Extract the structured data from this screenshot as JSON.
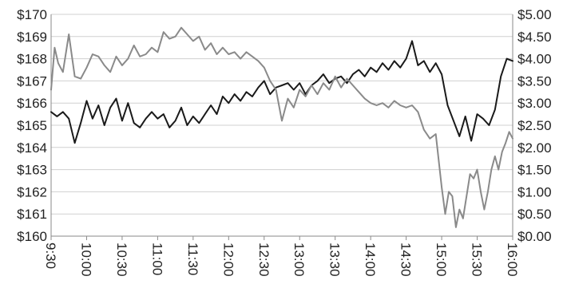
{
  "chart_data": {
    "type": "line",
    "grid": "horizontal",
    "legend": "none",
    "x_axis": {
      "ticks": [
        "9:30",
        "10:00",
        "10:30",
        "11:00",
        "11:30",
        "12:00",
        "12:30",
        "13:00",
        "13:30",
        "14:00",
        "14:30",
        "15:00",
        "15:30",
        "16:00"
      ]
    },
    "y_left": {
      "range": [
        160,
        170
      ],
      "step": 1,
      "tick_labels": [
        "$160",
        "$161",
        "$162",
        "$163",
        "$164",
        "$165",
        "$166",
        "$167",
        "$168",
        "$169",
        "$170"
      ]
    },
    "y_right": {
      "range": [
        0,
        5
      ],
      "step": 0.5,
      "tick_labels": [
        "$0.00",
        "$0.50",
        "$1.00",
        "$1.50",
        "$2.00",
        "$2.50",
        "$3.00",
        "$3.50",
        "$4.00",
        "$4.50",
        "$5.00"
      ]
    },
    "series": [
      {
        "axis": "left",
        "color": "#1a1a1a",
        "points": [
          [
            "9:30",
            165.6
          ],
          [
            "9:35",
            165.4
          ],
          [
            "9:40",
            165.6
          ],
          [
            "9:45",
            165.3
          ],
          [
            "9:50",
            164.2
          ],
          [
            "9:55",
            165.1
          ],
          [
            "10:00",
            166.1
          ],
          [
            "10:05",
            165.3
          ],
          [
            "10:10",
            165.9
          ],
          [
            "10:15",
            165.0
          ],
          [
            "10:20",
            165.8
          ],
          [
            "10:25",
            166.2
          ],
          [
            "10:30",
            165.2
          ],
          [
            "10:35",
            166.0
          ],
          [
            "10:40",
            165.1
          ],
          [
            "10:45",
            164.9
          ],
          [
            "10:50",
            165.3
          ],
          [
            "10:55",
            165.6
          ],
          [
            "11:00",
            165.3
          ],
          [
            "11:05",
            165.5
          ],
          [
            "11:10",
            164.9
          ],
          [
            "11:15",
            165.2
          ],
          [
            "11:20",
            165.8
          ],
          [
            "11:25",
            165.0
          ],
          [
            "11:30",
            165.4
          ],
          [
            "11:35",
            165.1
          ],
          [
            "11:40",
            165.5
          ],
          [
            "11:45",
            165.9
          ],
          [
            "11:50",
            165.5
          ],
          [
            "11:55",
            166.3
          ],
          [
            "12:00",
            166.0
          ],
          [
            "12:05",
            166.4
          ],
          [
            "12:10",
            166.1
          ],
          [
            "12:15",
            166.5
          ],
          [
            "12:20",
            166.3
          ],
          [
            "12:25",
            166.7
          ],
          [
            "12:30",
            167.0
          ],
          [
            "12:35",
            166.4
          ],
          [
            "12:40",
            166.7
          ],
          [
            "12:45",
            166.8
          ],
          [
            "12:50",
            166.9
          ],
          [
            "12:55",
            166.6
          ],
          [
            "13:00",
            166.9
          ],
          [
            "13:05",
            166.4
          ],
          [
            "13:10",
            166.8
          ],
          [
            "13:15",
            167.0
          ],
          [
            "13:20",
            167.3
          ],
          [
            "13:25",
            166.9
          ],
          [
            "13:30",
            167.1
          ],
          [
            "13:35",
            167.2
          ],
          [
            "13:40",
            166.9
          ],
          [
            "13:45",
            167.3
          ],
          [
            "13:50",
            167.5
          ],
          [
            "13:55",
            167.2
          ],
          [
            "14:00",
            167.6
          ],
          [
            "14:05",
            167.4
          ],
          [
            "14:10",
            167.8
          ],
          [
            "14:15",
            167.5
          ],
          [
            "14:20",
            167.9
          ],
          [
            "14:25",
            167.6
          ],
          [
            "14:30",
            168.0
          ],
          [
            "14:35",
            168.8
          ],
          [
            "14:40",
            167.7
          ],
          [
            "14:45",
            167.9
          ],
          [
            "14:50",
            167.4
          ],
          [
            "14:55",
            167.8
          ],
          [
            "15:00",
            167.3
          ],
          [
            "15:05",
            165.9
          ],
          [
            "15:10",
            165.2
          ],
          [
            "15:15",
            164.5
          ],
          [
            "15:20",
            165.4
          ],
          [
            "15:25",
            164.3
          ],
          [
            "15:30",
            165.5
          ],
          [
            "15:35",
            165.3
          ],
          [
            "15:40",
            165.0
          ],
          [
            "15:45",
            165.7
          ],
          [
            "15:50",
            167.2
          ],
          [
            "15:55",
            168.0
          ],
          [
            "16:00",
            167.9
          ]
        ]
      },
      {
        "axis": "right",
        "color": "#8a8a8a",
        "points": [
          [
            "9:30",
            3.3
          ],
          [
            "9:33",
            4.25
          ],
          [
            "9:36",
            3.9
          ],
          [
            "9:40",
            3.7
          ],
          [
            "9:45",
            4.55
          ],
          [
            "9:50",
            3.6
          ],
          [
            "9:55",
            3.55
          ],
          [
            "10:00",
            3.8
          ],
          [
            "10:05",
            4.1
          ],
          [
            "10:10",
            4.05
          ],
          [
            "10:15",
            3.85
          ],
          [
            "10:20",
            3.7
          ],
          [
            "10:25",
            4.05
          ],
          [
            "10:30",
            3.85
          ],
          [
            "10:35",
            4.0
          ],
          [
            "10:40",
            4.3
          ],
          [
            "10:45",
            4.05
          ],
          [
            "10:50",
            4.1
          ],
          [
            "10:55",
            4.25
          ],
          [
            "11:00",
            4.15
          ],
          [
            "11:05",
            4.6
          ],
          [
            "11:10",
            4.45
          ],
          [
            "11:15",
            4.5
          ],
          [
            "11:20",
            4.7
          ],
          [
            "11:25",
            4.55
          ],
          [
            "11:30",
            4.4
          ],
          [
            "11:35",
            4.5
          ],
          [
            "11:40",
            4.2
          ],
          [
            "11:45",
            4.35
          ],
          [
            "11:50",
            4.1
          ],
          [
            "11:55",
            4.25
          ],
          [
            "12:00",
            4.1
          ],
          [
            "12:05",
            4.15
          ],
          [
            "12:10",
            4.0
          ],
          [
            "12:15",
            4.15
          ],
          [
            "12:20",
            4.05
          ],
          [
            "12:25",
            3.95
          ],
          [
            "12:30",
            3.8
          ],
          [
            "12:35",
            3.5
          ],
          [
            "12:40",
            3.3
          ],
          [
            "12:45",
            2.6
          ],
          [
            "12:50",
            3.1
          ],
          [
            "12:55",
            2.9
          ],
          [
            "13:00",
            3.3
          ],
          [
            "13:05",
            3.15
          ],
          [
            "13:10",
            3.4
          ],
          [
            "13:15",
            3.2
          ],
          [
            "13:20",
            3.45
          ],
          [
            "13:25",
            3.3
          ],
          [
            "13:30",
            3.6
          ],
          [
            "13:35",
            3.35
          ],
          [
            "13:40",
            3.55
          ],
          [
            "13:45",
            3.4
          ],
          [
            "13:50",
            3.25
          ],
          [
            "13:55",
            3.1
          ],
          [
            "14:00",
            3.0
          ],
          [
            "14:05",
            2.95
          ],
          [
            "14:10",
            3.0
          ],
          [
            "14:15",
            2.9
          ],
          [
            "14:20",
            3.05
          ],
          [
            "14:25",
            2.95
          ],
          [
            "14:30",
            2.9
          ],
          [
            "14:35",
            2.95
          ],
          [
            "14:40",
            2.8
          ],
          [
            "14:45",
            2.4
          ],
          [
            "14:50",
            2.2
          ],
          [
            "14:55",
            2.3
          ],
          [
            "15:00",
            1.1
          ],
          [
            "15:03",
            0.5
          ],
          [
            "15:06",
            1.0
          ],
          [
            "15:09",
            0.9
          ],
          [
            "15:12",
            0.2
          ],
          [
            "15:15",
            0.6
          ],
          [
            "15:18",
            0.4
          ],
          [
            "15:21",
            0.9
          ],
          [
            "15:24",
            1.4
          ],
          [
            "15:27",
            1.3
          ],
          [
            "15:30",
            1.5
          ],
          [
            "15:33",
            1.0
          ],
          [
            "15:36",
            0.6
          ],
          [
            "15:39",
            1.0
          ],
          [
            "15:42",
            1.5
          ],
          [
            "15:45",
            1.8
          ],
          [
            "15:48",
            1.5
          ],
          [
            "15:51",
            1.9
          ],
          [
            "15:54",
            2.1
          ],
          [
            "15:57",
            2.35
          ],
          [
            "16:00",
            2.2
          ]
        ]
      }
    ]
  }
}
